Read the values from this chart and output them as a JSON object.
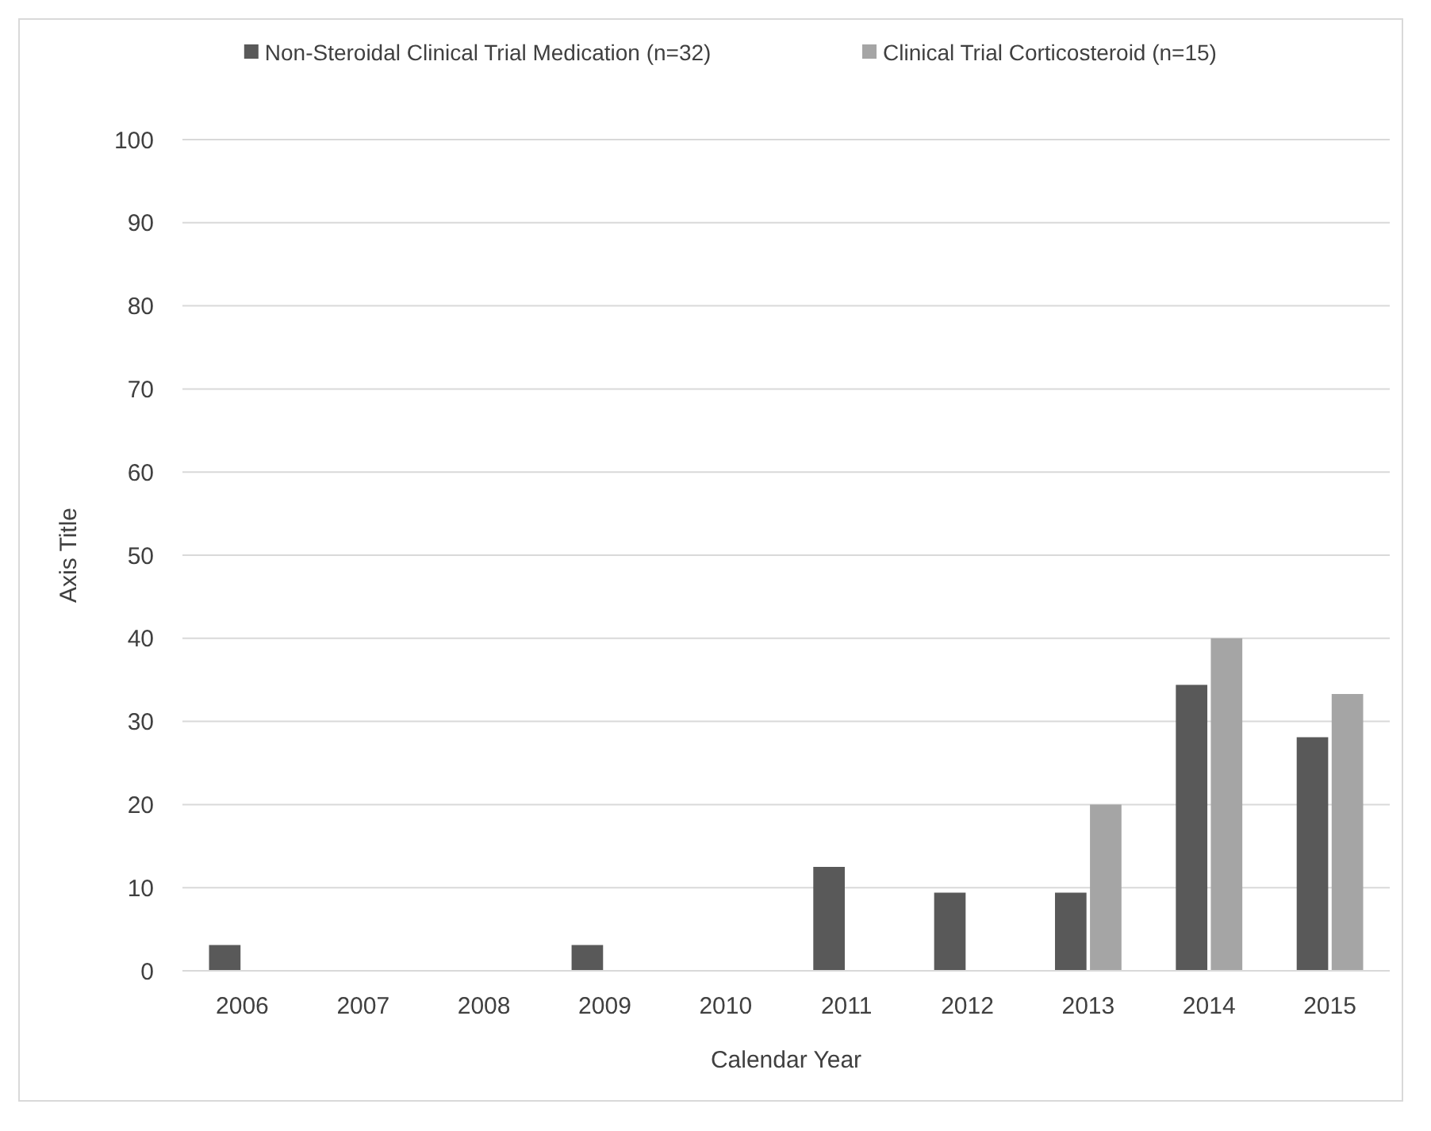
{
  "chart_data": {
    "type": "bar",
    "xlabel": "Calendar Year",
    "ylabel": "Axis Title",
    "categories": [
      "2006",
      "2007",
      "2008",
      "2009",
      "2010",
      "2011",
      "2012",
      "2013",
      "2014",
      "2015"
    ],
    "series": [
      {
        "name": "Non-Steroidal Clinical Trial Medication (n=32)",
        "color": "#595959",
        "values": [
          3.1,
          0,
          0,
          3.1,
          0,
          12.5,
          9.4,
          9.4,
          34.4,
          28.1
        ]
      },
      {
        "name": "Clinical Trial Corticosteroid (n=15)",
        "color": "#a5a5a5",
        "values": [
          0,
          0,
          0,
          0,
          0,
          0,
          0,
          20,
          40,
          33.3
        ]
      }
    ],
    "ylim": [
      0,
      100
    ],
    "yticks": [
      0,
      10,
      20,
      30,
      40,
      50,
      60,
      70,
      80,
      90,
      100
    ],
    "grid": "y",
    "legend": "top"
  }
}
